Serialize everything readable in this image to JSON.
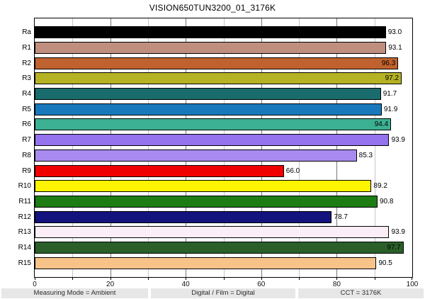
{
  "title": "VISION650TUN3200_01_3176K",
  "chart_data": {
    "type": "bar",
    "orientation": "horizontal",
    "title": "VISION650TUN3200_01_3176K",
    "categories": [
      "Ra",
      "R1",
      "R2",
      "R3",
      "R4",
      "R5",
      "R6",
      "R7",
      "R8",
      "R9",
      "R10",
      "R11",
      "R12",
      "R13",
      "R14",
      "R15"
    ],
    "values": [
      93.0,
      93.1,
      96.3,
      97.2,
      91.7,
      91.9,
      94.4,
      93.9,
      85.3,
      66.0,
      89.2,
      90.8,
      78.7,
      93.9,
      97.7,
      90.5
    ],
    "value_labels": [
      "93.0",
      "93.1",
      "96.3",
      "97.2",
      "91.7",
      "91.9",
      "94.4",
      "93.9",
      "85.3",
      "66.0",
      "89.2",
      "90.8",
      "78.7",
      "93.9",
      "97.7",
      "90.5"
    ],
    "bar_colors": [
      "#000000",
      "#bf8e7e",
      "#c0622f",
      "#b5b223",
      "#1a6c6c",
      "#1878bb",
      "#3bb092",
      "#9572ee",
      "#a98bf0",
      "#f00000",
      "#fdf500",
      "#1d7c14",
      "#14137e",
      "#fceef6",
      "#2a5f2a",
      "#f8c389"
    ],
    "xlim": [
      0,
      100
    ],
    "x_tick_labels": [
      0,
      20,
      40,
      60,
      80,
      100
    ],
    "gridline_step": 10,
    "grid": "vertical",
    "legend": "none"
  },
  "colors": {
    "grid_minor": "#c6c6c6",
    "grid_major": "#777777",
    "plot_border": "#000000",
    "footer_bg": "#e7e7e7"
  },
  "footer": {
    "measuring_mode": "Measuring Mode = Ambient",
    "digital_film": "Digital / Film = Digital",
    "cct": "CCT = 3176K"
  }
}
